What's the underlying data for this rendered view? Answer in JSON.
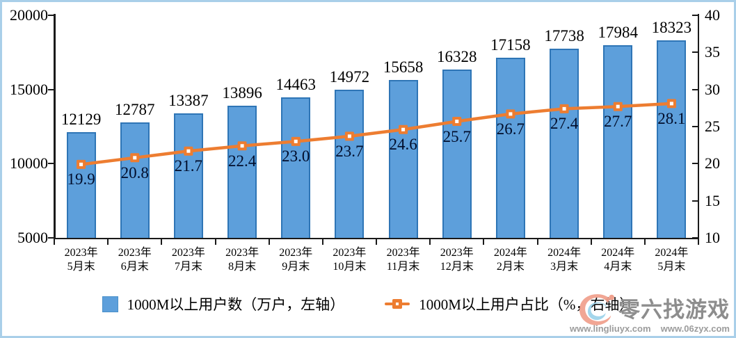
{
  "chart_data": {
    "type": "bar",
    "subtype": "bar-with-line-dual-axis",
    "title": "",
    "categories": [
      "2023年\n5月末",
      "2023年\n6月末",
      "2023年\n7月末",
      "2023年\n8月末",
      "2023年\n9月末",
      "2023年\n10月末",
      "2023年\n11月末",
      "2023年\n12月末",
      "2024年\n2月末",
      "2024年\n3月末",
      "2024年\n4月末",
      "2024年\n5月末"
    ],
    "series": [
      {
        "name": "1000M以上用户数（万户，左轴）",
        "type": "bar",
        "axis": "left",
        "values": [
          12129,
          12787,
          13387,
          13896,
          14463,
          14972,
          15658,
          16328,
          17158,
          17738,
          17984,
          18323
        ],
        "fill_color": "#5D9FDB",
        "border_color": "#2E75B6"
      },
      {
        "name": "1000M以上用户占比（%，右轴）",
        "type": "line",
        "axis": "right",
        "values": [
          19.9,
          20.8,
          21.7,
          22.4,
          23.0,
          23.7,
          24.6,
          25.7,
          26.7,
          27.4,
          27.7,
          28.1
        ],
        "label_decimals": 1,
        "line_color": "#ED7D31",
        "marker": "square",
        "marker_fill": "#ED7D31",
        "marker_center": "#FFFFFF"
      }
    ],
    "left_axis": {
      "min": 5000,
      "max": 20000,
      "step": 5000,
      "tick_labels": [
        "20000",
        "15000",
        "10000",
        "5000"
      ]
    },
    "right_axis": {
      "min": 10,
      "max": 40,
      "step": 5,
      "tick_labels": [
        "40",
        "35",
        "30",
        "25",
        "20",
        "15",
        "10"
      ]
    },
    "grid": false,
    "legend_position": "bottom",
    "data_labels": true
  },
  "frame": {
    "border_color": "#A9CFE9",
    "background": "#FFFFFF"
  },
  "watermark": {
    "title": "零六找游戏",
    "urls": [
      "www.lingliuyx.com",
      "www.06zyx.com"
    ]
  }
}
